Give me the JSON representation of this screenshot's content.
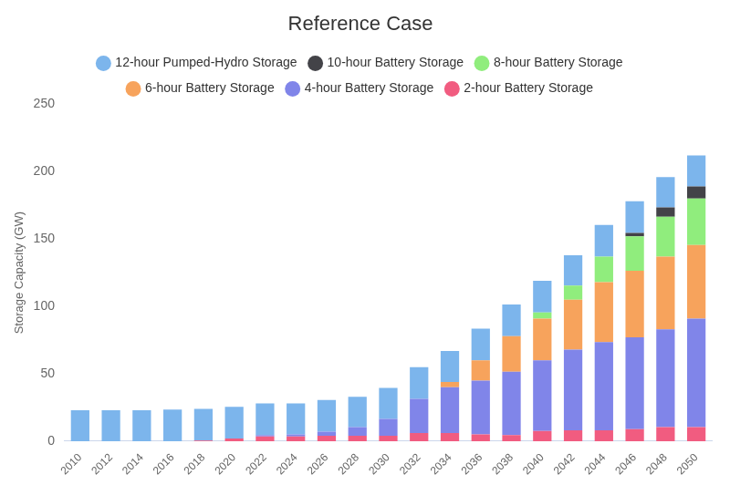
{
  "chart_data": {
    "type": "bar",
    "title": "Reference Case",
    "y_label": "Storage Capacity (GW)",
    "categories": [
      "2010",
      "2012",
      "2014",
      "2016",
      "2018",
      "2020",
      "2022",
      "2024",
      "2026",
      "2028",
      "2030",
      "2032",
      "2034",
      "2036",
      "2038",
      "2040",
      "2042",
      "2044",
      "2046",
      "2048",
      "2050"
    ],
    "series": [
      {
        "name": "12-hour Pumped-Hydro Storage",
        "color": "#7cb5ec",
        "values": [
          23,
          23,
          23,
          23.5,
          23.5,
          23.5,
          23.5,
          23,
          23.5,
          22.5,
          23,
          23.5,
          23,
          23.5,
          23.5,
          23.5,
          22.5,
          23.5,
          23.5,
          22.5,
          23
        ]
      },
      {
        "name": "10-hour Battery Storage",
        "color": "#434348",
        "values": [
          0,
          0,
          0,
          0,
          0,
          0,
          0,
          0,
          0,
          0,
          0,
          0,
          0,
          0,
          0,
          0,
          0,
          0,
          2.5,
          7,
          9
        ]
      },
      {
        "name": "8-hour Battery Storage",
        "color": "#90ed7d",
        "values": [
          0,
          0,
          0,
          0,
          0,
          0,
          0,
          0,
          0,
          0,
          0,
          0,
          0,
          0,
          0,
          4.5,
          10.5,
          19,
          25.5,
          29.5,
          34.5
        ]
      },
      {
        "name": "6-hour Battery Storage",
        "color": "#f7a35c",
        "values": [
          0,
          0,
          0,
          0,
          0,
          0,
          0,
          0,
          0,
          0,
          0,
          0,
          4,
          15,
          26.5,
          31,
          37,
          44.5,
          49.5,
          54,
          54.5
        ]
      },
      {
        "name": "4-hour Battery Storage",
        "color": "#8085e9",
        "values": [
          0,
          0,
          0,
          0,
          0,
          0,
          1,
          1.5,
          3,
          6.5,
          12.5,
          25.5,
          34,
          40,
          47,
          52.5,
          60,
          65.5,
          68,
          72.5,
          80.5
        ]
      },
      {
        "name": "2-hour Battery Storage",
        "color": "#f15c80",
        "values": [
          0,
          0,
          0,
          0,
          0.5,
          2,
          3.5,
          3.5,
          4,
          4,
          4,
          6,
          6,
          5,
          4.5,
          7.5,
          8,
          8,
          9,
          10.5,
          10.5
        ]
      }
    ],
    "ylim": [
      0,
      250
    ],
    "yticks": [
      0,
      50,
      100,
      150,
      200,
      250
    ],
    "stacked": true,
    "grid": false,
    "legend": "top"
  }
}
